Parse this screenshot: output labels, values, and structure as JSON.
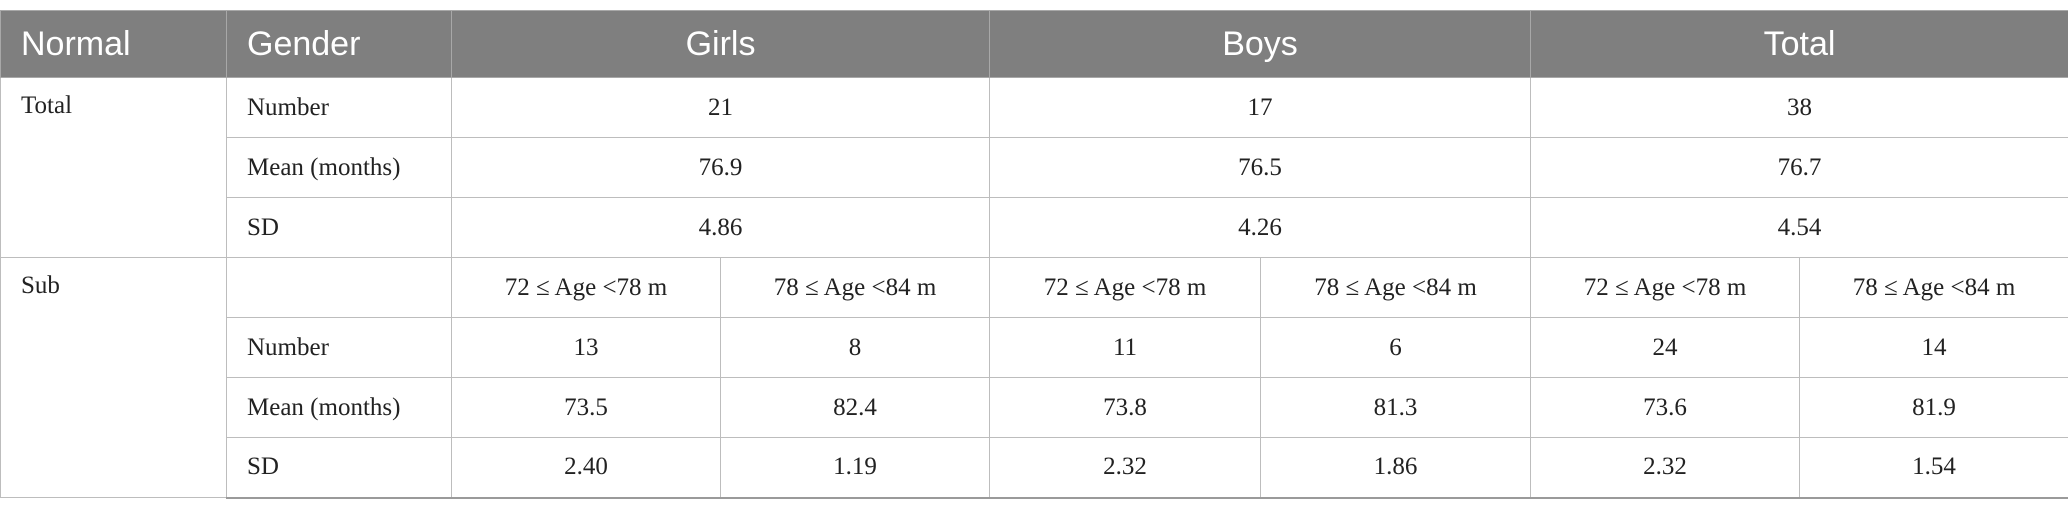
{
  "table": {
    "header": [
      "Normal",
      "Gender",
      "Girls",
      "Boys",
      "Total"
    ],
    "total": {
      "label": "Total",
      "rows": [
        {
          "label": "Number",
          "values": [
            "21",
            "17",
            "38"
          ]
        },
        {
          "label": "Mean (months)",
          "values": [
            "76.9",
            "76.5",
            "76.7"
          ]
        },
        {
          "label": "SD",
          "values": [
            "4.86",
            "4.26",
            "4.54"
          ]
        }
      ]
    },
    "sub": {
      "label": "Sub",
      "subheaders": [
        "72 ≤ Age <78 m",
        "78 ≤ Age <84 m",
        "72 ≤ Age <78 m",
        "78 ≤ Age <84 m",
        "72 ≤ Age <78 m",
        "78 ≤ Age <84 m"
      ],
      "rows": [
        {
          "label": "Number",
          "values": [
            "13",
            "8",
            "11",
            "6",
            "24",
            "14"
          ]
        },
        {
          "label": "Mean (months)",
          "values": [
            "73.5",
            "82.4",
            "73.8",
            "81.3",
            "73.6",
            "81.9"
          ]
        },
        {
          "label": "SD",
          "values": [
            "2.40",
            "1.19",
            "2.32",
            "1.86",
            "2.32",
            "1.54"
          ]
        }
      ]
    }
  }
}
